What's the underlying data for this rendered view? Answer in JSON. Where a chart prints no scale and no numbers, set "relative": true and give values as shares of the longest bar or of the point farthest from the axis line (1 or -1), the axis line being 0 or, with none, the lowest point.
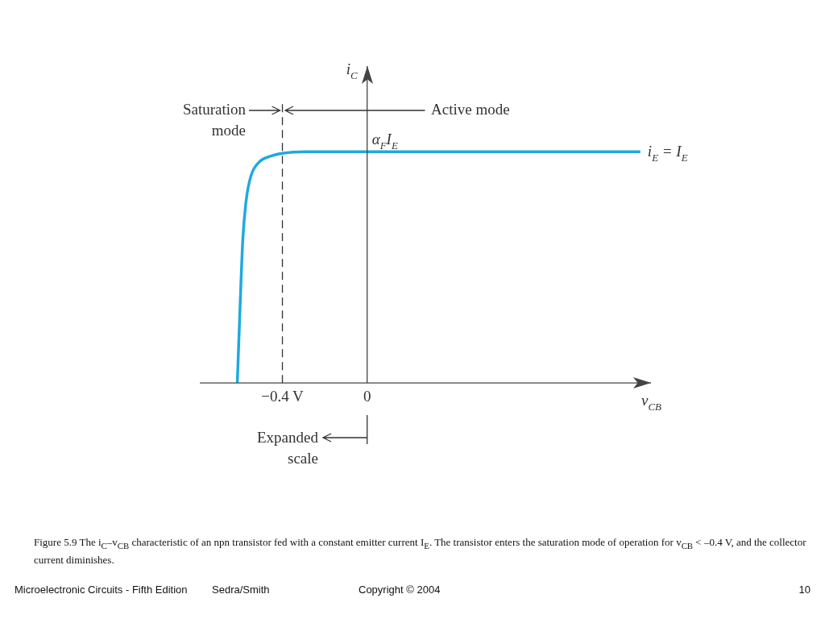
{
  "chart_data": {
    "type": "line",
    "relative": true,
    "xlabel": "v$_{CB}$",
    "ylabel": "i$_{C}$",
    "xlim": [
      -0.79,
      1.34
    ],
    "xticks": [
      {
        "value": -0.4,
        "label": "−0.4 V"
      },
      0
    ],
    "series": [
      {
        "color": "#1eaadf",
        "x": [
          -0.613,
          -0.602,
          -0.587,
          -0.571,
          -0.549,
          -0.51,
          -0.461,
          -0.4,
          -0.29,
          0,
          1.29
        ],
        "values": [
          0,
          0.277,
          0.62,
          0.79,
          0.894,
          0.955,
          0.979,
          0.993,
          1,
          1,
          1
        ]
      }
    ],
    "ref_lines": [
      {
        "axis": "x",
        "value": -0.4,
        "line_style": "dashed",
        "color": "#333333"
      }
    ],
    "annotations": [
      "Saturation mode",
      "Active mode",
      "Expanded scale",
      {
        "text": "α$_{F}$I$_{E}$",
        "x": 0,
        "y": 1
      },
      {
        "text": "i$_{E}$ = I$_{E}$",
        "x": 1.29,
        "y": 1
      },
      "Figure 5.9  The i$_{C}$–v$_{CB}$ characteristic of an npn transistor fed with a constant emitter current I$_{E}$. The transistor enters the saturation mode of operation for v$_{CB}$ < –0.4 V, and the collector current diminishes.",
      "Microelectronic Circuits - Fifth Edition",
      "Sedra/Smith",
      "Copyright © 2004",
      "10"
    ]
  }
}
